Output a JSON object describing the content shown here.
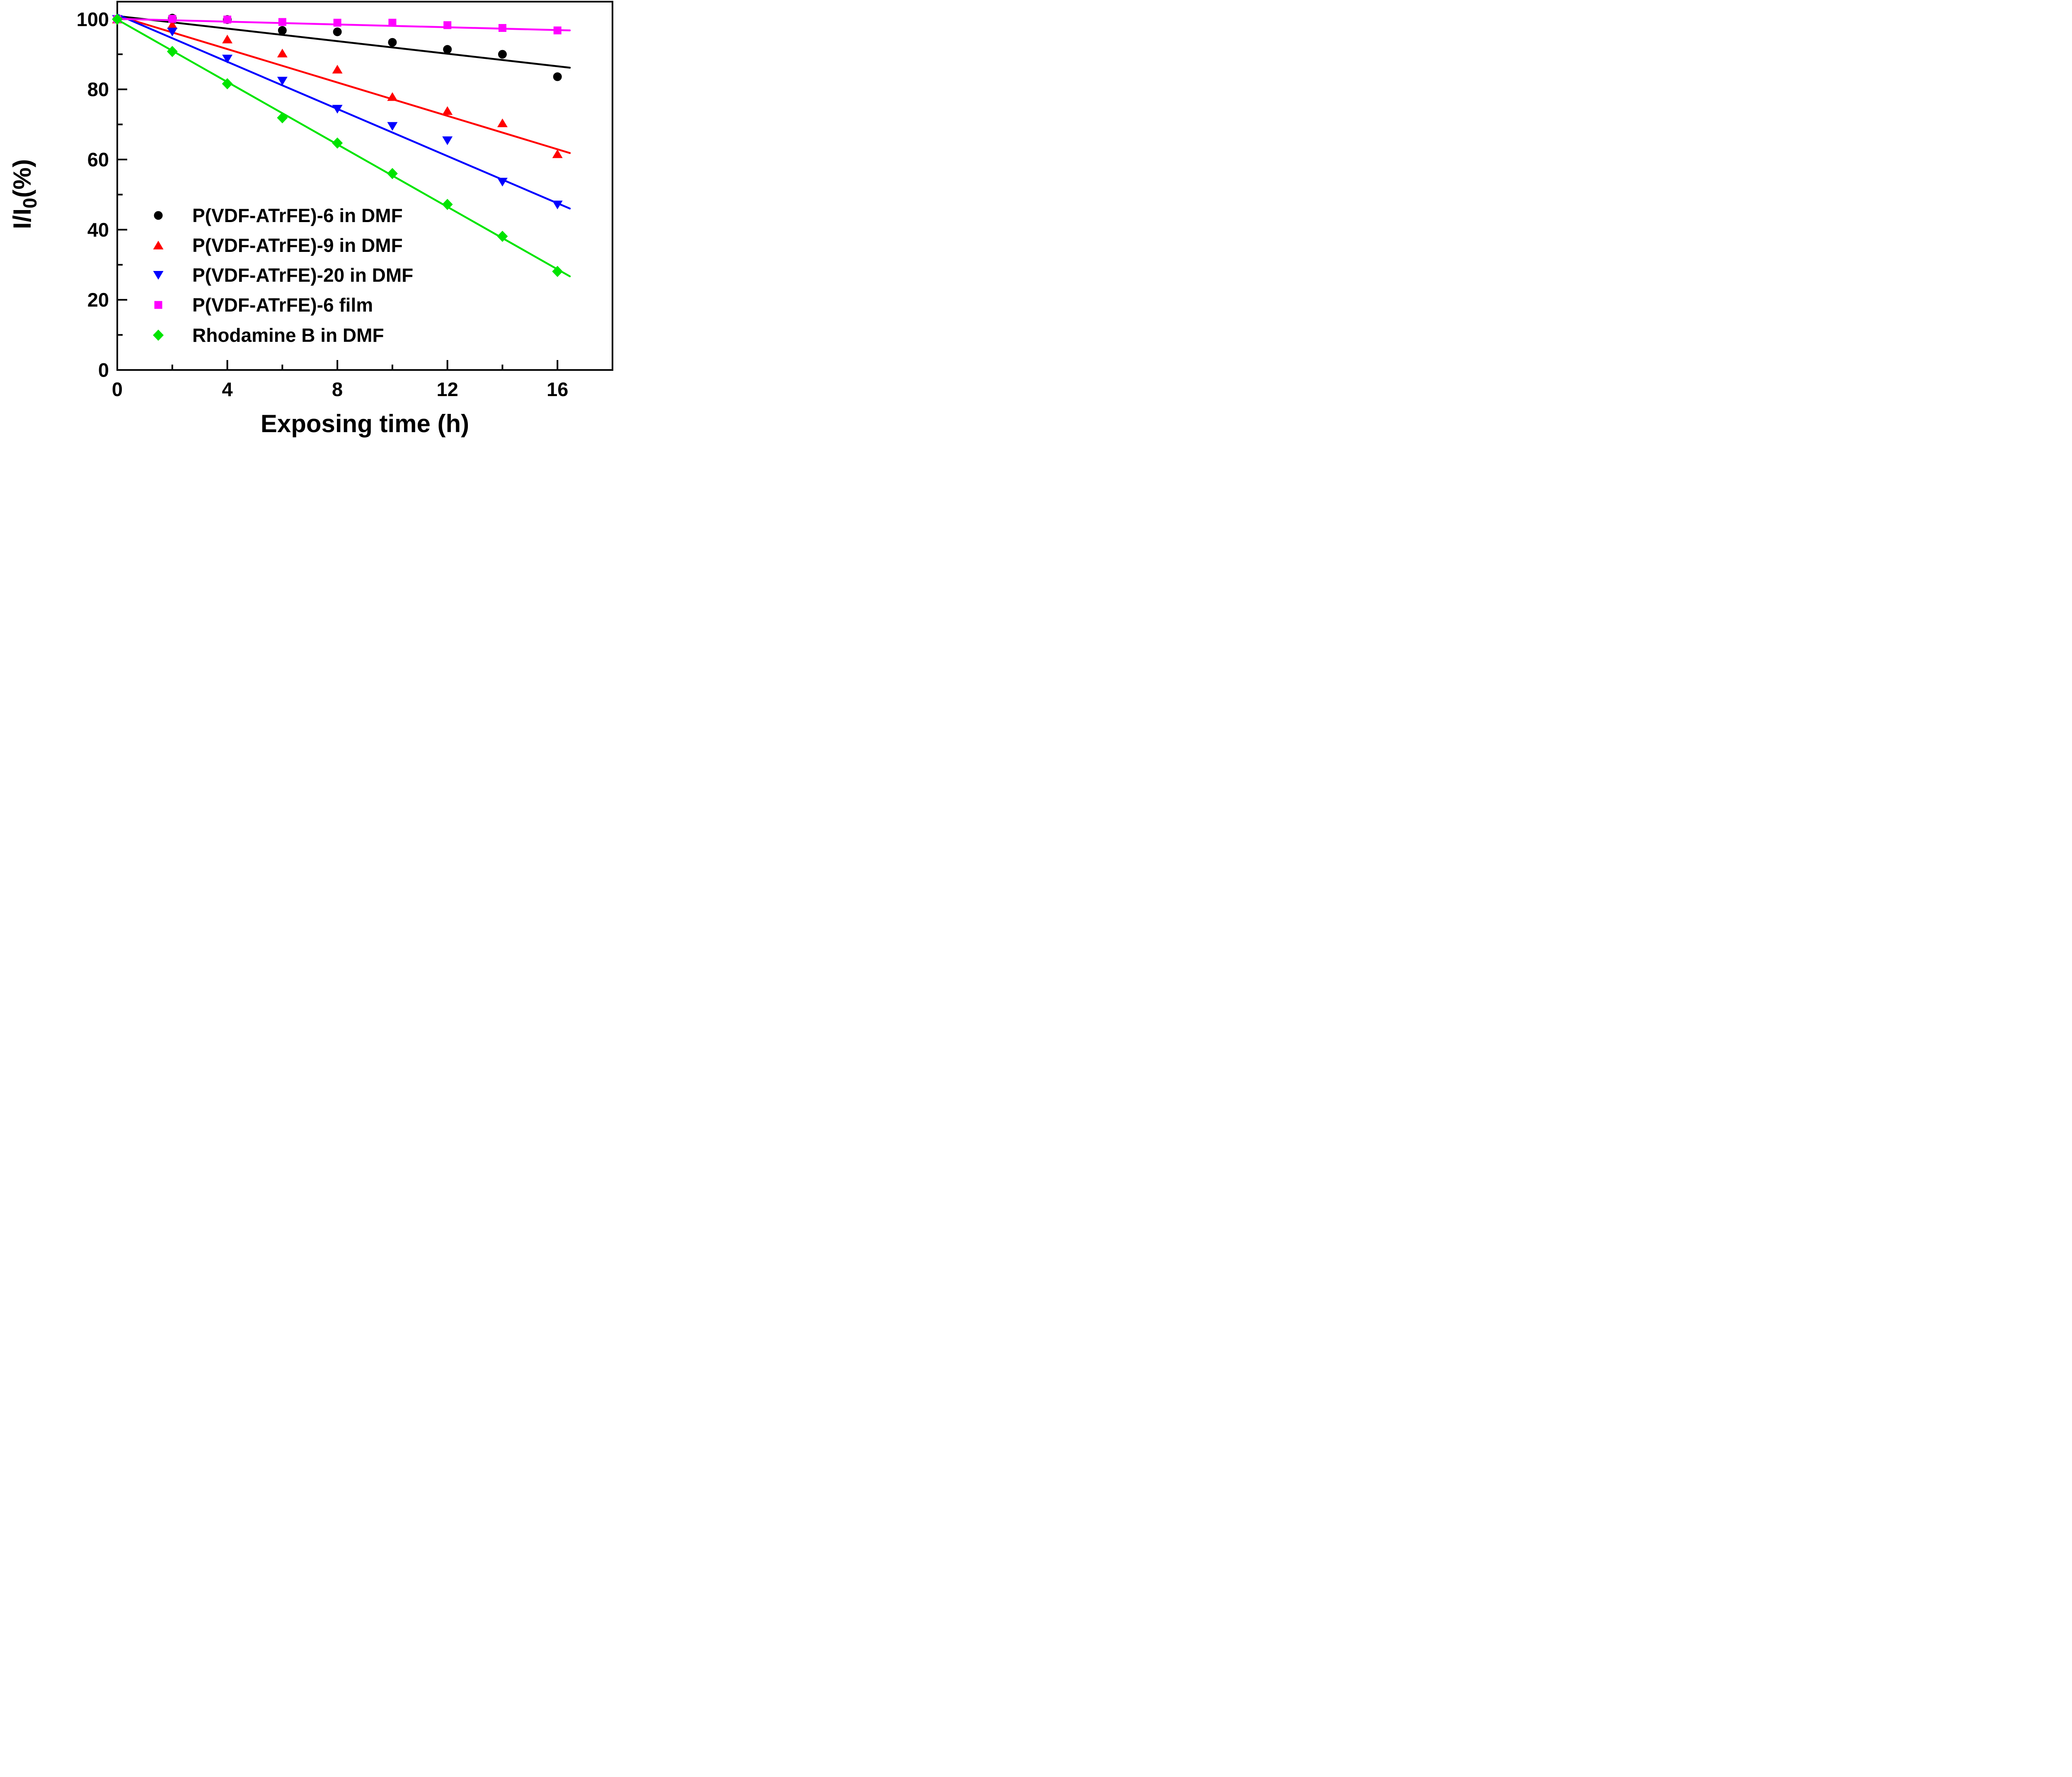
{
  "chart_data": {
    "type": "scatter",
    "title": "",
    "xlabel": "Exposing time (h)",
    "ylabel": "I/I0(%)",
    "ylabel_rich": [
      {
        "t": "I/I",
        "sub": false
      },
      {
        "t": "0",
        "sub": true
      },
      {
        "t": "(%)",
        "sub": false
      }
    ],
    "xlim": [
      0,
      18
    ],
    "ylim": [
      0,
      105
    ],
    "grid": false,
    "x_major_ticks": [
      0,
      4,
      8,
      12,
      16
    ],
    "x_minor_ticks": [
      2,
      6,
      10,
      14
    ],
    "x_tick_labels": [
      "0",
      "4",
      "8",
      "12",
      "16"
    ],
    "y_major_ticks": [
      0,
      20,
      40,
      60,
      80,
      100
    ],
    "y_minor_ticks": [
      10,
      30,
      50,
      70,
      90
    ],
    "y_tick_labels": [
      "0",
      "20",
      "40",
      "60",
      "80",
      "100"
    ],
    "x": [
      0,
      2,
      4,
      6,
      8,
      10,
      12,
      14,
      16
    ],
    "legend_position": "inside-lower-left",
    "series": [
      {
        "name": "P(VDF-ATrFE)-6 in DMF",
        "marker": "circle",
        "color": "#000000",
        "values": [
          100,
          100.3,
          99.9,
          96.8,
          96.4,
          93.4,
          91.4,
          90.0,
          83.6
        ],
        "fit_line": {
          "intercept": 100.9,
          "slope": -0.895,
          "x_start": 0,
          "x_end": 16.45
        }
      },
      {
        "name": "P(VDF-ATrFE)-9 in DMF",
        "marker": "triangle-up",
        "color": "#FF0000",
        "values": [
          100,
          98.4,
          94.3,
          90.3,
          85.7,
          77.9,
          73.9,
          70.4,
          61.6
        ],
        "fit_line": {
          "intercept": 101.0,
          "slope": -2.38,
          "x_start": 0,
          "x_end": 16.45
        }
      },
      {
        "name": "P(VDF-ATrFE)-20 in DMF",
        "marker": "triangle-down",
        "color": "#0000FF",
        "values": [
          100,
          96.4,
          88.7,
          82.4,
          74.4,
          69.5,
          65.4,
          53.6,
          47.1
        ],
        "fit_line": {
          "intercept": 101.3,
          "slope": -3.36,
          "x_start": 0,
          "x_end": 16.45
        }
      },
      {
        "name": "P(VDF-ATrFE)-6 film",
        "marker": "square",
        "color": "#FF00FF",
        "values": [
          100,
          100.1,
          99.9,
          99.2,
          99.0,
          99.0,
          98.3,
          97.5,
          96.8
        ],
        "fit_line": {
          "intercept": 100.1,
          "slope": -0.2,
          "x_start": 0,
          "x_end": 16.45
        }
      },
      {
        "name": "Rhodamine B in DMF",
        "marker": "diamond",
        "color": "#00E400",
        "values": [
          100,
          90.8,
          81.6,
          71.9,
          64.7,
          56.0,
          47.2,
          38.1,
          28.1
        ],
        "fit_line": {
          "intercept": 99.9,
          "slope": -4.45,
          "x_start": 0,
          "x_end": 16.45
        }
      }
    ]
  }
}
